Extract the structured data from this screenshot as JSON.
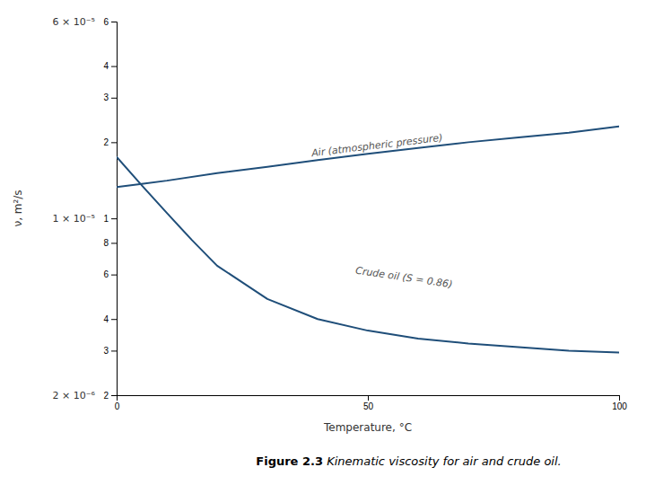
{
  "chart_data": {
    "type": "line",
    "log": "y",
    "grid": false,
    "color": "#1f4e79",
    "xlabel": "Temperature, °C",
    "ylabel": "ν, m²/s",
    "caption": [
      "Figure 2.3",
      " Kinematic viscosity for air and crude oil."
    ],
    "xlim": [
      0,
      100
    ],
    "ylim": [
      2e-06,
      6e-05
    ],
    "xticks": [
      0,
      50,
      100
    ],
    "yticks": [
      {
        "value": 2e-06,
        "label": "2"
      },
      {
        "value": 3e-06,
        "label": "3"
      },
      {
        "value": 4e-06,
        "label": "4"
      },
      {
        "value": 6e-06,
        "label": "6"
      },
      {
        "value": 8e-06,
        "label": "8"
      },
      {
        "value": 1e-05,
        "label": "1"
      },
      {
        "value": 2e-05,
        "label": "2"
      },
      {
        "value": 3e-05,
        "label": "3"
      },
      {
        "value": 4e-05,
        "label": "4"
      },
      {
        "value": 6e-05,
        "label": "6"
      }
    ],
    "series": [
      {
        "x": [
          0,
          5,
          10,
          20,
          30,
          40,
          50,
          60,
          70,
          80,
          90,
          100
        ],
        "values": [
          1.33e-05,
          1.37e-05,
          1.41e-05,
          1.51e-05,
          1.6e-05,
          1.7e-05,
          1.8e-05,
          1.9e-05,
          2e-05,
          2.09e-05,
          2.18e-05,
          2.31e-05
        ]
      },
      {
        "x": [
          0,
          5,
          10,
          15,
          20,
          30,
          40,
          50,
          60,
          70,
          80,
          90,
          100
        ],
        "values": [
          1.75e-05,
          1.35e-05,
          1.05e-05,
          8.2e-06,
          6.5e-06,
          4.8e-06,
          4e-06,
          3.6e-06,
          3.35e-06,
          3.2e-06,
          3.1e-06,
          3e-06,
          2.95e-06
        ]
      }
    ],
    "annotations": [
      {
        "text": "Air (atmospheric pressure)",
        "x": 52,
        "y": 1.83e-05
      },
      {
        "text": "Crude oil (S = 0.86)",
        "x": 57,
        "y": 5.5e-06
      },
      {
        "text": "6 × 10⁻⁵",
        "y": 6e-05
      },
      {
        "text": "1 × 10⁻⁵",
        "y": 1e-05
      },
      {
        "text": "2 × 10⁻⁶",
        "y": 2e-06
      }
    ]
  }
}
